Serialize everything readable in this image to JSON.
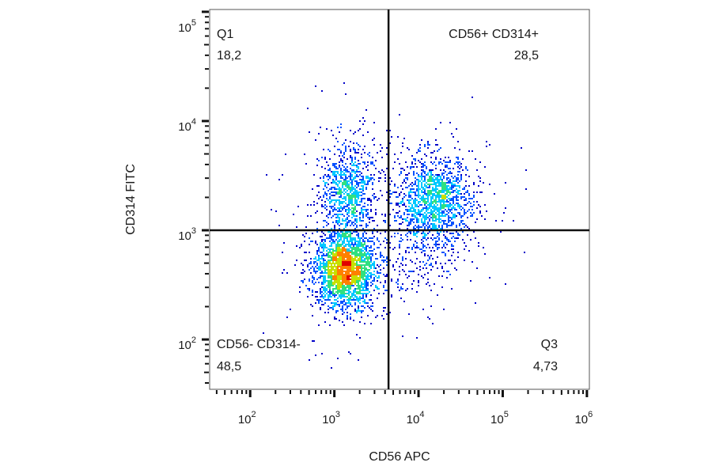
{
  "chart_data": {
    "type": "scatter",
    "subtype": "flow-cytometry density dot plot",
    "xlabel": "CD56 APC",
    "ylabel": "CD314 FITC",
    "x_scale": "log",
    "y_scale": "log",
    "xlim": [
      33,
      1070000
    ],
    "ylim": [
      35,
      105000
    ],
    "x_ticks": [
      {
        "value": 100,
        "base": "10",
        "exp": "2"
      },
      {
        "value": 1000,
        "base": "10",
        "exp": "3"
      },
      {
        "value": 10000,
        "base": "10",
        "exp": "4"
      },
      {
        "value": 100000,
        "base": "10",
        "exp": "5"
      },
      {
        "value": 1000000,
        "base": "10",
        "exp": "6"
      }
    ],
    "y_ticks": [
      {
        "value": 100,
        "base": "10",
        "exp": "2"
      },
      {
        "value": 1000,
        "base": "10",
        "exp": "3"
      },
      {
        "value": 10000,
        "base": "10",
        "exp": "4"
      },
      {
        "value": 100000,
        "base": "10",
        "exp": "5"
      }
    ],
    "gate": {
      "x": 4400,
      "y": 1000
    },
    "quadrants": [
      {
        "name": "Q1",
        "value": "18,2",
        "position": "top-left"
      },
      {
        "name": "CD56+ CD314+",
        "value": "28,5",
        "position": "top-right"
      },
      {
        "name": "CD56- CD314-",
        "value": "48,5",
        "position": "bottom-left"
      },
      {
        "name": "Q3",
        "value": "4,73",
        "position": "bottom-right"
      }
    ],
    "populations": [
      {
        "center_x": 1300,
        "center_y": 450,
        "spread_log": [
          0.17,
          0.17
        ],
        "share": 0.485
      },
      {
        "center_x": 1400,
        "center_y": 2300,
        "spread_log": [
          0.16,
          0.2
        ],
        "share": 0.182
      },
      {
        "center_x": 15000,
        "center_y": 1900,
        "spread_log": [
          0.22,
          0.2
        ],
        "share": 0.285
      },
      {
        "center_x": 9000,
        "center_y": 600,
        "spread_log": [
          0.3,
          0.25
        ],
        "share": 0.047
      }
    ],
    "colormap": [
      "#0000c8",
      "#0050ff",
      "#00c8ff",
      "#30e080",
      "#c8e000",
      "#ff8000",
      "#e00000"
    ],
    "grid": false,
    "legend": "none"
  }
}
